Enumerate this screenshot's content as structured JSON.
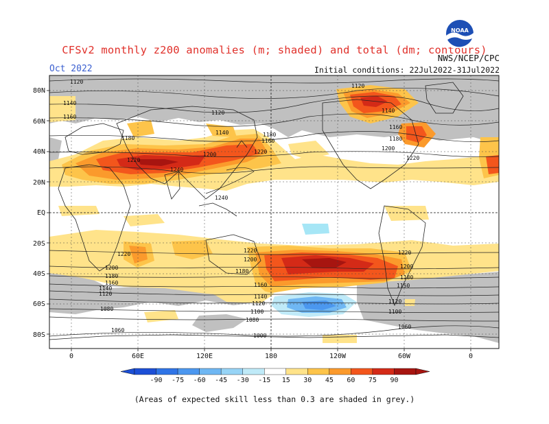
{
  "title": "CFSv2 monthly z200 anomalies (m; shaded) and total (dm; contours)",
  "month": "Oct 2022",
  "agency": "NWS/NCEP/CPC",
  "initial_conditions": "Initial conditions: 22Jul2022-31Jul2022",
  "logo_text": "NOAA",
  "footnote": "(Areas of expected skill less than 0.3 are shaded in grey.)",
  "colors": {
    "grey": "#c0c0c0",
    "light_yellow": "#ffe38a",
    "yellow": "#fdc44a",
    "orange": "#fb9a2c",
    "dark_orange": "#f3561c",
    "red": "#d42a17",
    "dark_red": "#a71510",
    "light_blue": "#a6e6f6",
    "mid_blue": "#5ab6f2",
    "blue": "#3b8fe9"
  },
  "map": {
    "lat_labels": [
      "80N",
      "60N",
      "40N",
      "20N",
      "EQ",
      "20S",
      "40S",
      "60S",
      "80S"
    ],
    "lon_labels": [
      "0",
      "60E",
      "120E",
      "180",
      "120W",
      "60W",
      "0"
    ]
  },
  "contour_labels": [
    {
      "id": "c1",
      "text": "1120"
    },
    {
      "id": "c2",
      "text": "1140"
    },
    {
      "id": "c3",
      "text": "1160"
    },
    {
      "id": "c4",
      "text": "1180"
    },
    {
      "id": "c5",
      "text": "1220"
    },
    {
      "id": "c6",
      "text": "1240"
    },
    {
      "id": "c7",
      "text": "1200"
    },
    {
      "id": "c8",
      "text": "1120"
    },
    {
      "id": "c9",
      "text": "1140"
    },
    {
      "id": "c10",
      "text": "1180"
    },
    {
      "id": "c11",
      "text": "1160"
    },
    {
      "id": "c12",
      "text": "1220"
    },
    {
      "id": "c13",
      "text": "1240"
    },
    {
      "id": "c14",
      "text": "1120"
    },
    {
      "id": "c15",
      "text": "1140"
    },
    {
      "id": "c16",
      "text": "1160"
    },
    {
      "id": "c17",
      "text": "1180"
    },
    {
      "id": "c18",
      "text": "1200"
    },
    {
      "id": "c19",
      "text": "1220"
    },
    {
      "id": "c20",
      "text": "1220"
    },
    {
      "id": "c21",
      "text": "1200"
    },
    {
      "id": "c22",
      "text": "1180"
    },
    {
      "id": "c23",
      "text": "1160"
    },
    {
      "id": "c24",
      "text": "1140"
    },
    {
      "id": "c25",
      "text": "1120"
    },
    {
      "id": "c26",
      "text": "1080"
    },
    {
      "id": "c27",
      "text": "1220"
    },
    {
      "id": "c28",
      "text": "1200"
    },
    {
      "id": "c29",
      "text": "1180"
    },
    {
      "id": "c30",
      "text": "1160"
    },
    {
      "id": "c31",
      "text": "1140"
    },
    {
      "id": "c32",
      "text": "1120"
    },
    {
      "id": "c33",
      "text": "1100"
    },
    {
      "id": "c34",
      "text": "1080"
    },
    {
      "id": "c35",
      "text": "1060"
    },
    {
      "id": "c36",
      "text": "1000"
    },
    {
      "id": "c37",
      "text": "1220"
    },
    {
      "id": "c38",
      "text": "1200"
    },
    {
      "id": "c39",
      "text": "1180"
    },
    {
      "id": "c40",
      "text": "1150"
    },
    {
      "id": "c41",
      "text": "1120"
    },
    {
      "id": "c42",
      "text": "1100"
    },
    {
      "id": "c43",
      "text": "1060"
    }
  ],
  "colorbar": {
    "labels": [
      "-90",
      "-75",
      "-60",
      "-45",
      "-30",
      "-15",
      "15",
      "30",
      "45",
      "60",
      "75",
      "90"
    ],
    "colors": [
      "#1c4fd6",
      "#2f74e6",
      "#4b97ef",
      "#6fb7f3",
      "#97d4f6",
      "#bfeaf8",
      "#ffffff",
      "#ffe38a",
      "#fdc44a",
      "#fb9a2c",
      "#f3561c",
      "#d42a17",
      "#a71510"
    ]
  }
}
